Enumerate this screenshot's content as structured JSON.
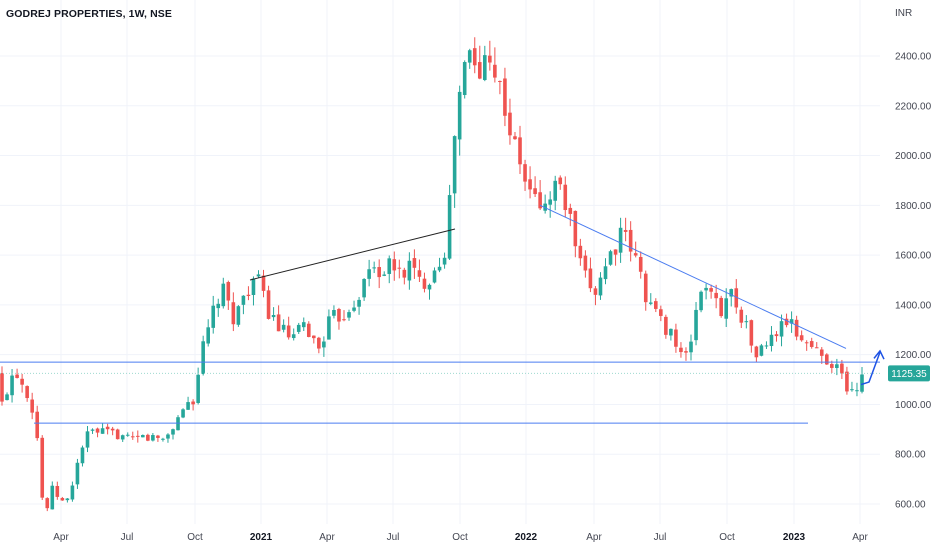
{
  "chart_data": {
    "type": "candlestick",
    "title": "GODREJ PROPERTIES, 1W, NSE",
    "currency": "INR",
    "y_ticks": [
      "600.00",
      "800.00",
      "1000.00",
      "1200.00",
      "1400.00",
      "1600.00",
      "1800.00",
      "2000.00",
      "2200.00",
      "2400.00"
    ],
    "x_labels": [
      "Apr",
      "Jul",
      "Oct",
      "2021",
      "Apr",
      "Jul",
      "Oct",
      "2022",
      "Apr",
      "Jul",
      "Oct",
      "2023",
      "Apr"
    ],
    "x_labels_bold": [
      "2021",
      "2022",
      "2023"
    ],
    "last_price": "1125.35",
    "colors": {
      "up": "#26a69a",
      "down": "#ef5350",
      "grid": "#f0f3fa",
      "trendline_blue": "#4a7cf0",
      "trendline_black": "#222222",
      "price_badge": "#26a69a"
    },
    "key_values": {
      "peak_high": 2600,
      "covid_low": 520,
      "support_upper": 1170,
      "support_lower": 925,
      "current_close": 1125.35
    },
    "grid": true
  }
}
